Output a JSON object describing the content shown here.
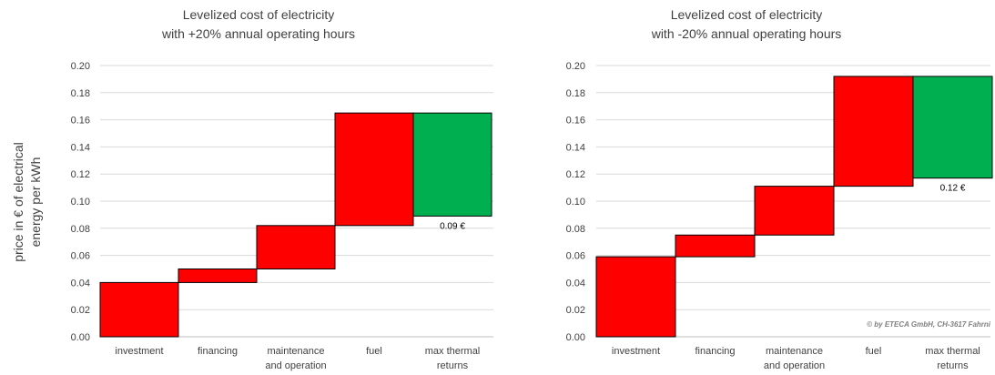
{
  "y_axis_label": [
    "price in € of electrical",
    "energy per kWh"
  ],
  "watermark": "© by ETECA GmbH, CH-3617 Fahrni",
  "colors": {
    "cost": "#ff0000",
    "returns": "#00b050",
    "grid": "#d9d9d9",
    "text": "#404040",
    "edge": "#000000"
  },
  "chart_data": [
    {
      "type": "bar",
      "subtype": "waterfall",
      "title": [
        "Levelized cost of electricity",
        "with +20% annual operating hours"
      ],
      "ylim": [
        0,
        0.2
      ],
      "yticks": [
        "0.00",
        "0.02",
        "0.04",
        "0.06",
        "0.08",
        "0.10",
        "0.12",
        "0.14",
        "0.16",
        "0.18",
        "0.20"
      ],
      "grid": true,
      "categories": [
        [
          "investment"
        ],
        [
          "financing"
        ],
        [
          "maintenance",
          "and operation"
        ],
        [
          "fuel"
        ],
        [
          "max thermal",
          "returns"
        ]
      ],
      "bars": [
        {
          "from": 0.0,
          "to": 0.04,
          "kind": "cost"
        },
        {
          "from": 0.04,
          "to": 0.05,
          "kind": "cost"
        },
        {
          "from": 0.05,
          "to": 0.082,
          "kind": "cost"
        },
        {
          "from": 0.082,
          "to": 0.165,
          "kind": "cost"
        },
        {
          "from": 0.165,
          "to": 0.089,
          "kind": "returns"
        }
      ],
      "annotations": [
        {
          "bar": 4,
          "text": "0.09 €"
        }
      ]
    },
    {
      "type": "bar",
      "subtype": "waterfall",
      "title": [
        "Levelized cost of electricity",
        "with -20% annual operating hours"
      ],
      "ylim": [
        0,
        0.2
      ],
      "yticks": [
        "0.00",
        "0.02",
        "0.04",
        "0.06",
        "0.08",
        "0.10",
        "0.12",
        "0.14",
        "0.16",
        "0.18",
        "0.20"
      ],
      "grid": true,
      "categories": [
        [
          "investment"
        ],
        [
          "financing"
        ],
        [
          "maintenance",
          "and operation"
        ],
        [
          "fuel"
        ],
        [
          "max thermal",
          "returns"
        ]
      ],
      "bars": [
        {
          "from": 0.0,
          "to": 0.059,
          "kind": "cost"
        },
        {
          "from": 0.059,
          "to": 0.075,
          "kind": "cost"
        },
        {
          "from": 0.075,
          "to": 0.111,
          "kind": "cost"
        },
        {
          "from": 0.111,
          "to": 0.192,
          "kind": "cost"
        },
        {
          "from": 0.192,
          "to": 0.117,
          "kind": "returns"
        }
      ],
      "annotations": [
        {
          "bar": 4,
          "text": "0.12 €"
        }
      ]
    }
  ]
}
